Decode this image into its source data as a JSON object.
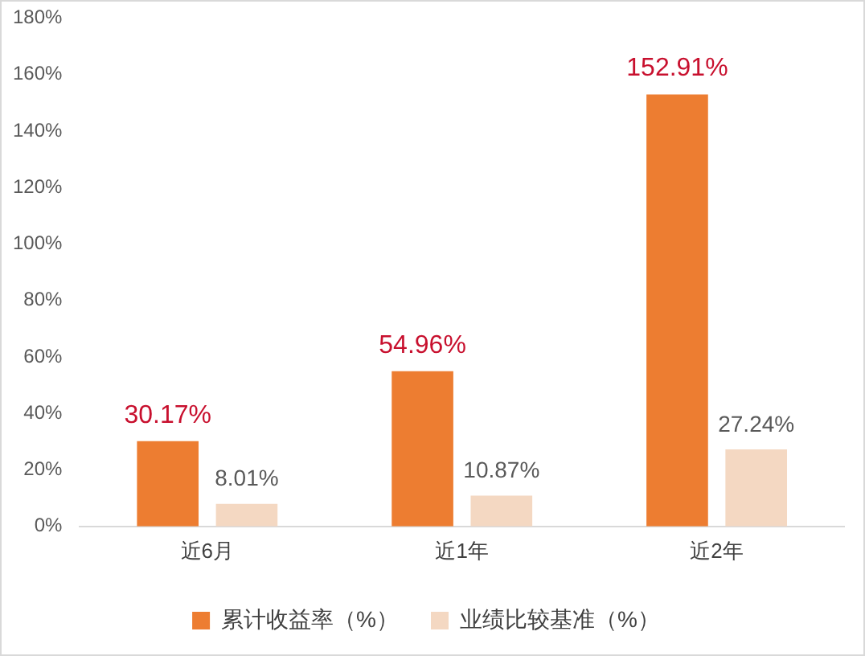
{
  "chart_data": {
    "type": "bar",
    "categories": [
      "近6月",
      "近1年",
      "近2年"
    ],
    "series": [
      {
        "name": "累计收益率（%）",
        "color": "#ed7d31",
        "values": [
          30.17,
          54.96,
          152.91
        ],
        "value_labels": [
          "30.17%",
          "54.96%",
          "152.91%"
        ]
      },
      {
        "name": "业绩比较基准（%）",
        "color": "#f4d8c2",
        "values": [
          8.01,
          10.87,
          27.24
        ],
        "value_labels": [
          "8.01%",
          "10.87%",
          "27.24%"
        ]
      }
    ],
    "ylim": [
      0,
      180
    ],
    "yticks": [
      {
        "value": 0,
        "label": "0%"
      },
      {
        "value": 20,
        "label": "20%"
      },
      {
        "value": 40,
        "label": "40%"
      },
      {
        "value": 60,
        "label": "60%"
      },
      {
        "value": 80,
        "label": "80%"
      },
      {
        "value": 100,
        "label": "100%"
      },
      {
        "value": 120,
        "label": "120%"
      },
      {
        "value": 140,
        "label": "140%"
      },
      {
        "value": 160,
        "label": "160%"
      },
      {
        "value": 180,
        "label": "180%"
      }
    ],
    "grid": false,
    "legend": "bottom"
  }
}
